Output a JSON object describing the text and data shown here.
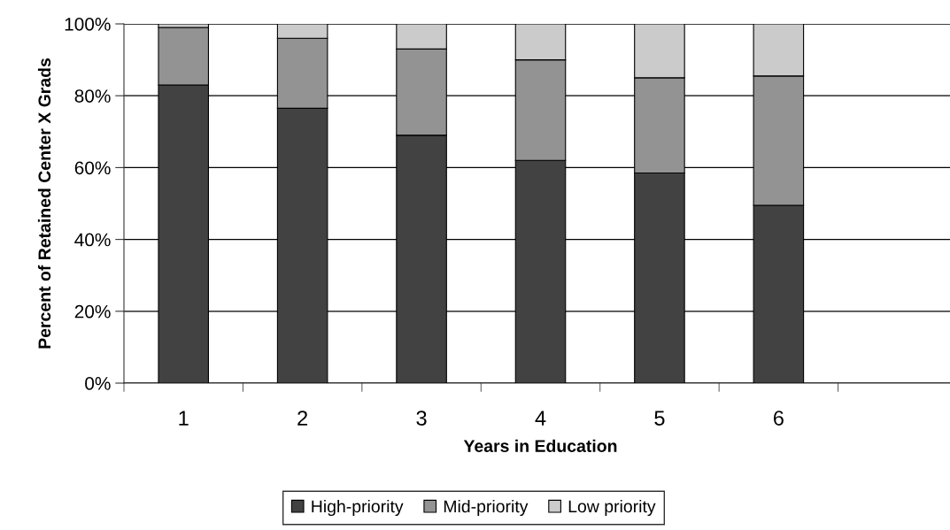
{
  "chart_data": {
    "type": "bar",
    "stacked": true,
    "xlabel": "Years in Education",
    "ylabel": "Percent of Retained Center X Grads",
    "categories": [
      "1",
      "2",
      "3",
      "4",
      "5",
      "6",
      null
    ],
    "series": [
      {
        "name": "High-priority",
        "color": "#424242",
        "values": [
          83,
          76.5,
          69,
          62,
          58.5,
          49.5,
          null
        ]
      },
      {
        "name": "Mid-priority",
        "color": "#939393",
        "values": [
          16,
          19.5,
          24,
          28,
          26.5,
          36,
          null
        ]
      },
      {
        "name": "Low priority",
        "color": "#cbcbcb",
        "values": [
          1,
          4,
          7,
          10,
          15,
          14.5,
          null
        ]
      }
    ],
    "ylim": [
      0,
      100
    ],
    "yticks": [
      {
        "value": 0,
        "label": "0%"
      },
      {
        "value": 20,
        "label": "20%"
      },
      {
        "value": 40,
        "label": "40%"
      },
      {
        "value": 60,
        "label": "60%"
      },
      {
        "value": 80,
        "label": "80%"
      },
      {
        "value": 100,
        "label": "100%"
      }
    ],
    "grid": "y",
    "legend": "bottom"
  }
}
